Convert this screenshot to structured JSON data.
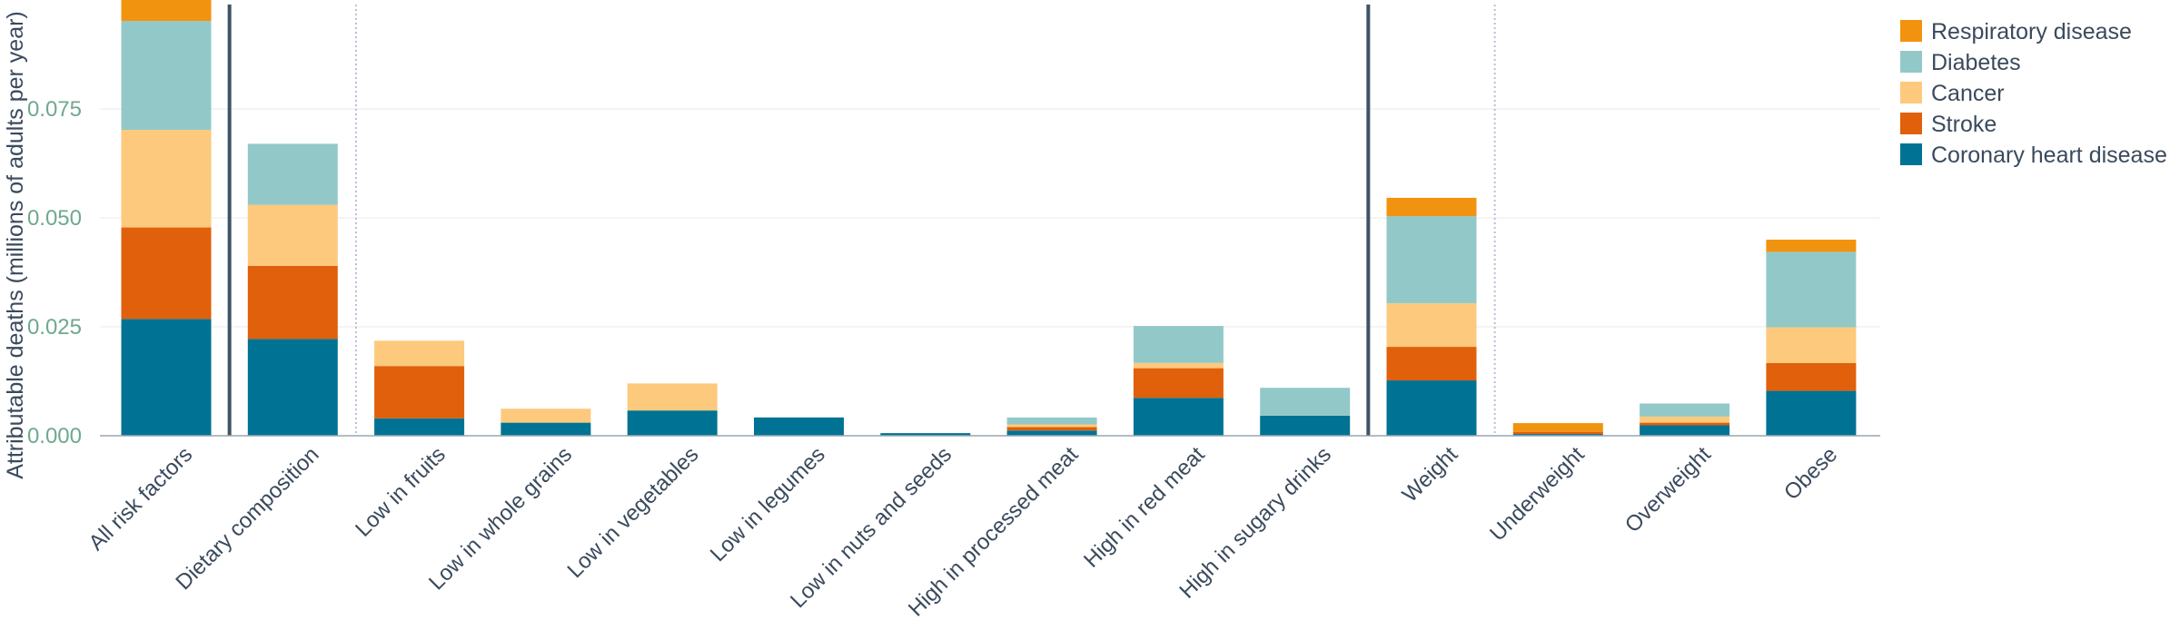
{
  "chart_data": {
    "type": "bar",
    "stacked": true,
    "title": "",
    "xlabel": "",
    "ylabel": "Attributable deaths (millions of adults per year)",
    "ylim": [
      0,
      0.1
    ],
    "yticks": [
      "0.000",
      "0.025",
      "0.050",
      "0.075"
    ],
    "grid": true,
    "legend_position": "top-right",
    "categories": [
      "All risk factors",
      "Dietary composition",
      "Low in fruits",
      "Low in whole grains",
      "Low in vegetables",
      "Low in legumes",
      "Low in nuts and seeds",
      "High in processed meat",
      "High in red meat",
      "High in sugary drinks",
      "Weight",
      "Underweight",
      "Overweight",
      "Obese"
    ],
    "series": [
      {
        "name": "Coronary heart disease",
        "color": "#007394",
        "values": [
          0.0268,
          0.0222,
          0.004,
          0.003,
          0.0058,
          0.0042,
          0.0006,
          0.0012,
          0.0087,
          0.0046,
          0.0127,
          0.0004,
          0.0024,
          0.0103
        ]
      },
      {
        "name": "Stroke",
        "color": "#e0600b",
        "values": [
          0.021,
          0.0168,
          0.012,
          0.0,
          0.0,
          0.0,
          0.0,
          0.0008,
          0.0068,
          0.0,
          0.0077,
          0.0005,
          0.0006,
          0.0064
        ]
      },
      {
        "name": "Cancer",
        "color": "#fdc97c",
        "values": [
          0.0224,
          0.014,
          0.0058,
          0.0032,
          0.0062,
          0.0,
          0.0,
          0.0006,
          0.0012,
          0.0,
          0.01,
          0.0,
          0.0014,
          0.0082
        ]
      },
      {
        "name": "Diabetes",
        "color": "#92c9c8",
        "values": [
          0.025,
          0.014,
          0.0,
          0.0,
          0.0,
          0.0,
          0.0,
          0.0016,
          0.0085,
          0.0064,
          0.02,
          0.0,
          0.003,
          0.0173
        ]
      },
      {
        "name": "Respiratory disease",
        "color": "#f2930f",
        "values": [
          0.0048,
          0.0,
          0.0,
          0.0,
          0.0,
          0.0,
          0.0,
          0.0,
          0.0,
          0.0,
          0.0042,
          0.002,
          0.0,
          0.0028
        ]
      }
    ],
    "legend_order": [
      "Respiratory disease",
      "Diabetes",
      "Cancer",
      "Stroke",
      "Coronary heart disease"
    ],
    "group_separators": [
      {
        "after_index": 0,
        "style": "solid"
      },
      {
        "after_index": 1,
        "style": "dotted"
      },
      {
        "after_index": 9,
        "style": "solid"
      },
      {
        "after_index": 10,
        "style": "dotted"
      }
    ],
    "colors": {
      "axis": "#3a4a5c",
      "ytick": "#6fa88f",
      "grid": "#e8e8e8",
      "separator": "#3e5366",
      "dotted_separator": "#b7bfd4"
    }
  }
}
